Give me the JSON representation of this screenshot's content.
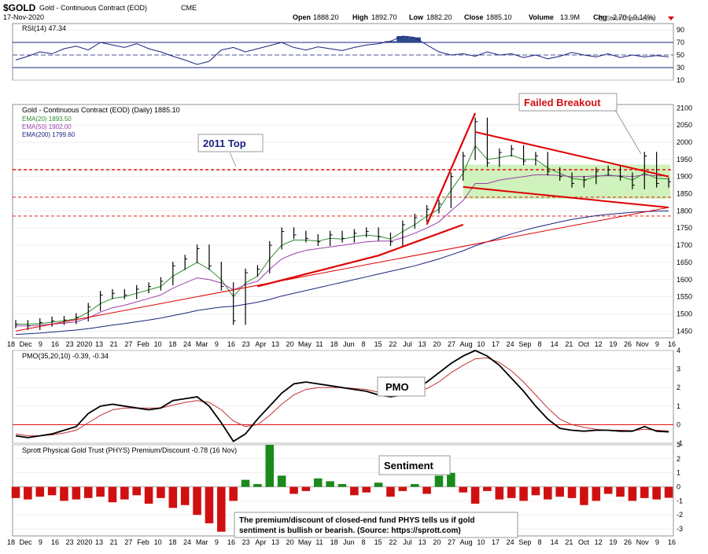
{
  "header": {
    "symbol": "$GOLD",
    "name": "Gold - Continuous Contract (EOD)",
    "exchange": "CME",
    "date": "17-Nov-2020",
    "open_label": "Open",
    "open": "1888.20",
    "high_label": "High",
    "high": "1892.70",
    "low_label": "Low",
    "low": "1882.20",
    "close_label": "Close",
    "close": "1885.10",
    "volume_label": "Volume",
    "volume": "13.9M",
    "chg_label": "Chg",
    "chg": "-2.70 (-0.14%)",
    "watermark": "@ StockCharts.com"
  },
  "colors": {
    "price": "#000000",
    "ema20": "#2e8b2e",
    "ema50": "#9b3fae",
    "ema200": "#1a237e",
    "red": "#e00000",
    "rsi_fill": "#2a4a8a",
    "green_box": "#c8f0b0",
    "hist": "#d01010",
    "hist_pos": "#1a8a1a"
  },
  "chart_data": [
    {
      "type": "line",
      "title": "RSI(14) 47.34",
      "ylim": [
        10,
        100
      ],
      "y_ticks": [
        "90",
        "70",
        "50",
        "30",
        "10"
      ],
      "reference_lines": [
        70,
        30
      ],
      "series": [
        {
          "name": "RSI(14)",
          "values": [
            42,
            48,
            55,
            52,
            60,
            64,
            58,
            70,
            66,
            62,
            68,
            60,
            55,
            48,
            42,
            35,
            40,
            58,
            62,
            55,
            60,
            65,
            70,
            62,
            58,
            63,
            60,
            57,
            62,
            66,
            68,
            72,
            80,
            78,
            66,
            55,
            50,
            52,
            48,
            55,
            50,
            52,
            46,
            50,
            44,
            48,
            54,
            50,
            47,
            52,
            46,
            50,
            47,
            49,
            47
          ]
        }
      ]
    },
    {
      "type": "line",
      "title": "Gold - Continuous Contract (EOD) (Daily) 1885.10",
      "ylim": [
        1430,
        2110
      ],
      "y_ticks": [
        "2100",
        "2050",
        "2000",
        "1950",
        "1900",
        "1850",
        "1800",
        "1750",
        "1700",
        "1650",
        "1600",
        "1550",
        "1500",
        "1450"
      ],
      "x_tick_labels": [
        "18",
        "Dec",
        "9",
        "16",
        "23",
        "2020",
        "13",
        "21",
        "27",
        "Feb",
        "10",
        "18",
        "24",
        "Mar",
        "9",
        "16",
        "23",
        "Apr",
        "13",
        "20",
        "May",
        "11",
        "18",
        "Jun",
        "8",
        "15",
        "22",
        "Jul",
        "13",
        "20",
        "27",
        "Aug",
        "10",
        "17",
        "24",
        "Sep",
        "8",
        "14",
        "21",
        "Oct",
        "12",
        "19",
        "26",
        "Nov",
        "9",
        "16"
      ],
      "legend": [
        {
          "name": "EMA(20)",
          "value": "1893.50"
        },
        {
          "name": "EMA(50)",
          "value": "1902.00"
        },
        {
          "name": "EMA(200)",
          "value": "1799.60"
        }
      ],
      "series": [
        {
          "name": "Price",
          "values": [
            1470,
            1465,
            1475,
            1480,
            1482,
            1490,
            1520,
            1555,
            1560,
            1555,
            1572,
            1580,
            1595,
            1640,
            1660,
            1690,
            1640,
            1580,
            1480,
            1620,
            1630,
            1700,
            1740,
            1730,
            1720,
            1710,
            1730,
            1720,
            1735,
            1740,
            1725,
            1710,
            1760,
            1780,
            1805,
            1820,
            1900,
            1960,
            2060,
            1940,
            1970,
            1980,
            1945,
            1960,
            1915,
            1900,
            1880,
            1890,
            1915,
            1920,
            1900,
            1875,
            1960,
            1880,
            1885
          ]
        },
        {
          "name": "EMA(20)",
          "values": [
            1470,
            1470,
            1472,
            1476,
            1480,
            1486,
            1505,
            1530,
            1545,
            1550,
            1560,
            1570,
            1580,
            1610,
            1630,
            1650,
            1630,
            1600,
            1550,
            1590,
            1610,
            1660,
            1700,
            1715,
            1715,
            1712,
            1720,
            1718,
            1725,
            1730,
            1726,
            1718,
            1740,
            1760,
            1785,
            1805,
            1860,
            1910,
            1990,
            1950,
            1955,
            1962,
            1950,
            1950,
            1925,
            1910,
            1895,
            1890,
            1900,
            1905,
            1900,
            1890,
            1910,
            1895,
            1893
          ]
        },
        {
          "name": "EMA(50)",
          "values": [
            1465,
            1465,
            1467,
            1470,
            1473,
            1477,
            1488,
            1505,
            1518,
            1525,
            1535,
            1545,
            1555,
            1575,
            1590,
            1605,
            1600,
            1590,
            1570,
            1585,
            1595,
            1630,
            1660,
            1675,
            1685,
            1690,
            1695,
            1700,
            1705,
            1710,
            1712,
            1712,
            1722,
            1735,
            1750,
            1768,
            1800,
            1830,
            1880,
            1880,
            1890,
            1895,
            1900,
            1905,
            1905,
            1903,
            1900,
            1900,
            1902,
            1902,
            1902,
            1900,
            1905,
            1902,
            1902
          ]
        },
        {
          "name": "EMA(200)",
          "values": [
            1440,
            1442,
            1444,
            1447,
            1450,
            1453,
            1457,
            1462,
            1467,
            1472,
            1477,
            1482,
            1488,
            1495,
            1502,
            1510,
            1515,
            1520,
            1522,
            1528,
            1534,
            1542,
            1552,
            1560,
            1568,
            1576,
            1584,
            1592,
            1600,
            1608,
            1616,
            1624,
            1632,
            1640,
            1650,
            1660,
            1672,
            1684,
            1698,
            1710,
            1722,
            1733,
            1743,
            1752,
            1760,
            1768,
            1775,
            1781,
            1786,
            1790,
            1793,
            1796,
            1798,
            1799,
            1800
          ]
        }
      ],
      "annotations": [
        "2011 Top",
        "Failed Breakout"
      ]
    },
    {
      "type": "line",
      "title": "PMO(35,20,10) -0.39, -0.34",
      "ylim": [
        -1,
        4
      ],
      "y_ticks": [
        "4",
        "3",
        "2",
        "1",
        "0",
        "-1"
      ],
      "series": [
        {
          "name": "PMO",
          "values": [
            -0.6,
            -0.7,
            -0.6,
            -0.5,
            -0.3,
            -0.1,
            0.6,
            1.0,
            1.1,
            1.0,
            0.9,
            0.8,
            0.9,
            1.3,
            1.4,
            1.5,
            1.0,
            0.1,
            -0.9,
            -0.5,
            0.3,
            1.0,
            1.7,
            2.2,
            2.3,
            2.2,
            2.1,
            2.0,
            1.9,
            1.8,
            1.6,
            1.5,
            1.6,
            1.9,
            2.3,
            2.8,
            3.3,
            3.7,
            4.0,
            3.7,
            3.2,
            2.5,
            1.8,
            1.0,
            0.3,
            -0.2,
            -0.3,
            -0.35,
            -0.3,
            -0.3,
            -0.35,
            -0.35,
            -0.1,
            -0.35,
            -0.39
          ]
        },
        {
          "name": "Signal",
          "values": [
            -0.5,
            -0.6,
            -0.6,
            -0.55,
            -0.45,
            -0.3,
            0.1,
            0.5,
            0.8,
            0.9,
            0.9,
            0.9,
            0.9,
            1.05,
            1.2,
            1.3,
            1.2,
            0.8,
            0.2,
            -0.1,
            0.0,
            0.5,
            1.1,
            1.6,
            1.9,
            2.0,
            2.0,
            2.0,
            1.95,
            1.9,
            1.75,
            1.65,
            1.6,
            1.7,
            1.95,
            2.3,
            2.8,
            3.2,
            3.55,
            3.6,
            3.35,
            2.9,
            2.3,
            1.6,
            0.9,
            0.3,
            0.0,
            -0.15,
            -0.25,
            -0.3,
            -0.3,
            -0.32,
            -0.25,
            -0.3,
            -0.34
          ]
        }
      ]
    },
    {
      "type": "bar",
      "title": "Sprott Physical Gold Trust (PHYS) Premium/Discount -0.78 (16 Nov)",
      "ylim": [
        -3.5,
        3
      ],
      "y_ticks": [
        "3",
        "2",
        "1",
        "0",
        "-1",
        "-2",
        "-3"
      ],
      "series": [
        {
          "name": "Premium/Discount",
          "values": [
            -0.8,
            -0.9,
            -0.7,
            -0.6,
            -1.0,
            -0.9,
            -0.8,
            -0.7,
            -1.1,
            -0.9,
            -0.6,
            -1.2,
            -0.8,
            -1.5,
            -1.3,
            -2.0,
            -2.6,
            -3.2,
            -1.0,
            0.5,
            0.2,
            3.0,
            0.8,
            -0.5,
            -0.3,
            0.6,
            0.4,
            0.2,
            -0.6,
            -0.4,
            0.3,
            -0.7,
            -0.3,
            0.2,
            -0.5,
            0.8,
            1.0,
            -0.4,
            -1.2,
            -0.3,
            -0.9,
            -0.8,
            -1.0,
            -0.6,
            -0.9,
            -0.7,
            -0.8,
            -1.3,
            -1.0,
            -0.5,
            -0.7,
            -1.0,
            -0.8,
            -0.9,
            -0.78
          ]
        }
      ],
      "annotations": [
        "Sentiment",
        "The premium/discount of closed-end fund PHYS tells us if gold sentiment is bullish or bearish. (Source: https://sprott.com)"
      ]
    }
  ],
  "labels": {
    "pmo_tag": "PMO",
    "sentiment_tag": "Sentiment",
    "note": "The premium/discount of closed-end fund PHYS tells us if gold sentiment is bullish or bearish. (Source: https://sprott.com)",
    "top_2011": "2011 Top",
    "failed_breakout": "Failed Breakout"
  }
}
